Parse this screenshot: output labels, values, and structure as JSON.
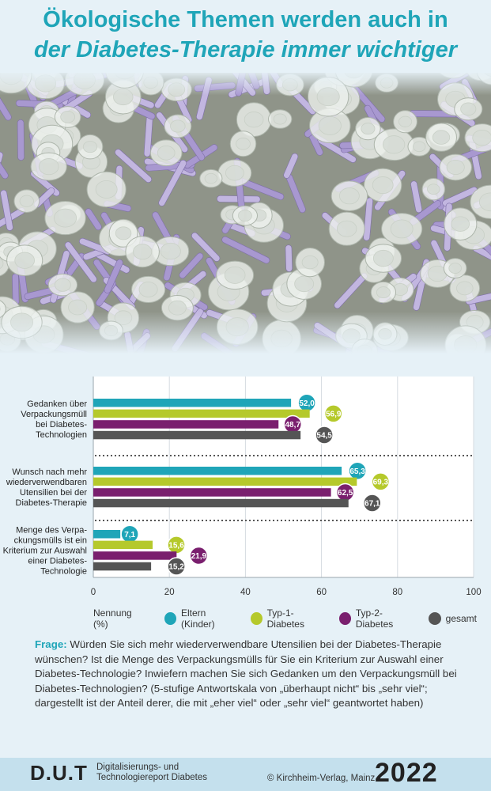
{
  "header": {
    "title_line1": "Ökologische Themen werden auch in",
    "title_line2": "der Diabetes-Therapie immer wichtiger"
  },
  "photo": {
    "description_icon": "lancet-caps-photo"
  },
  "chart_data": {
    "type": "bar",
    "orientation": "horizontal",
    "categories": [
      "Gedanken über Verpackungsmüll bei Diabetes-Technologien",
      "Wunsch nach mehr wiederverwendbaren Utensilien bei der Diabetes-Therapie",
      "Menge des Verpackungsmülls ist ein Kriterium zur Auswahl einer Diabetes-Technologie"
    ],
    "category_lines": [
      [
        "Gedanken über",
        "Verpackungsmüll",
        "bei Diabetes-",
        "Technologien"
      ],
      [
        "Wunsch nach mehr",
        "wiederverwendbaren",
        "Utensilien bei der",
        "Diabetes-Therapie"
      ],
      [
        "Menge des Verpa-",
        "ckungsmülls ist ein",
        "Kriterium zur Auswahl",
        "einer Diabetes-",
        "Technologie"
      ]
    ],
    "series": [
      {
        "name": "Eltern (Kinder)",
        "color": "#1fa5b8",
        "values": [
          52.0,
          65.3,
          7.1
        ],
        "labels": [
          "52,0",
          "65,3",
          "7,1"
        ]
      },
      {
        "name": "Typ-1-Diabetes",
        "color": "#b5c92b",
        "values": [
          56.9,
          69.3,
          15.6
        ],
        "labels": [
          "56,9",
          "69,3",
          "15,6"
        ]
      },
      {
        "name": "Typ-2-Diabetes",
        "color": "#7a1f6e",
        "values": [
          48.7,
          62.5,
          21.9
        ],
        "labels": [
          "48,7",
          "62,5",
          "21,9"
        ]
      },
      {
        "name": "gesamt",
        "color": "#555555",
        "values": [
          54.5,
          67.1,
          15.2
        ],
        "labels": [
          "54,5",
          "67,1",
          "15,2"
        ]
      }
    ],
    "xlim": [
      0,
      100
    ],
    "xticks": [
      0,
      20,
      40,
      60,
      80,
      100
    ],
    "xlabel": "Nennung (%)",
    "grid": true,
    "legend_position": "bottom"
  },
  "question": {
    "label": "Frage:",
    "text": "Würden Sie sich mehr wiederverwendbare Utensilien bei der Diabetes-Therapie wünschen? Ist die Menge des Verpackungsmülls für Sie ein Kriterium zur Auswahl einer Diabetes-Technologie? Inwiefern machen Sie sich Gedanken um den Verpackungsmüll bei Diabetes-Technologien? (5-stufige Antwortskala von „überhaupt nicht“ bis „sehr viel“; dargestellt ist der Anteil derer, die mit „eher viel“ oder „sehr viel“ geantwortet haben)"
  },
  "footer": {
    "logo": "D.U.T",
    "subtitle_line1": "Digitalisierungs- und",
    "subtitle_line2": "Technologiereport Diabetes",
    "copyright": "© Kirchheim-Verlag, Mainz",
    "year": "2022"
  }
}
